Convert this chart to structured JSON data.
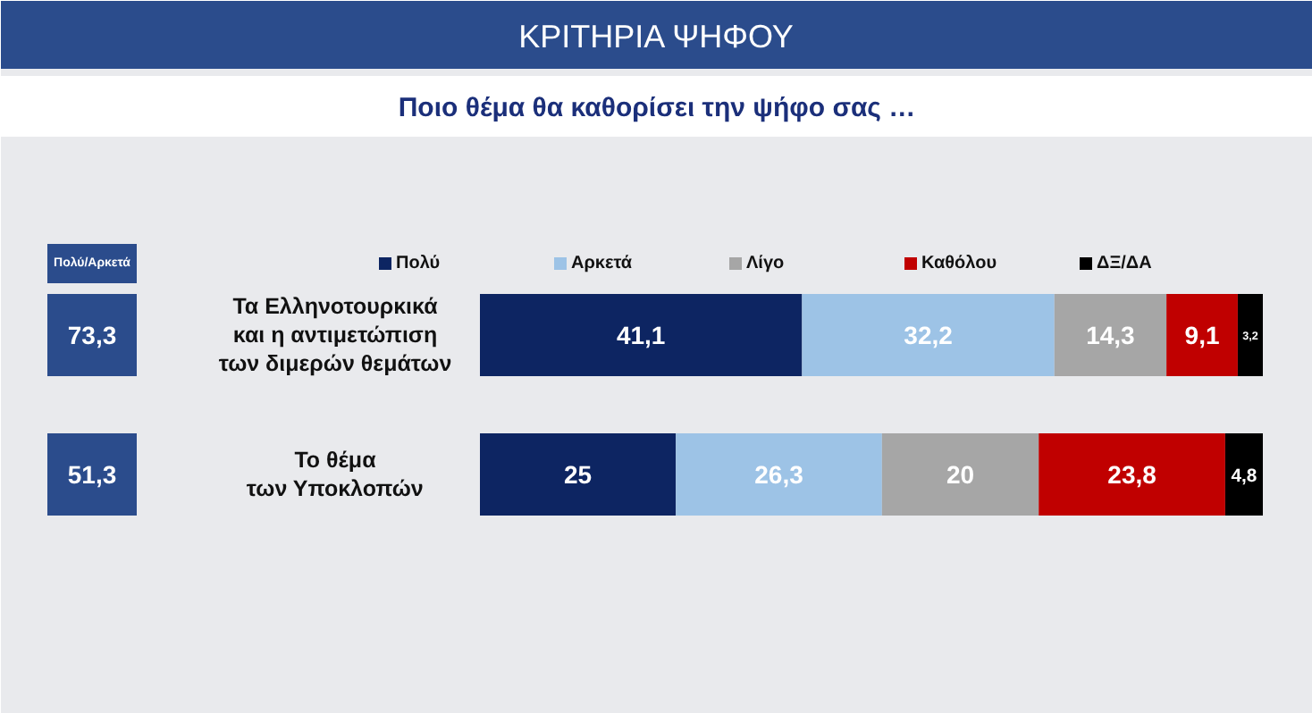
{
  "chart_data": {
    "type": "bar",
    "orientation": "horizontal",
    "stacked": true,
    "title": "ΚΡΙΤΗΡΙΑ ΨΗΦΟΥ",
    "subtitle": "Ποιο θέμα θα καθορίσει την ψήφο σας …",
    "categories": [
      "Τα Ελληνοτουρκικά\nκαι η αντιμετώπιση\nτων διμερών θεμάτων",
      "Το θέμα\nτων Υποκλοπών"
    ],
    "series": [
      {
        "name": "Πολύ",
        "color": "#0d2562",
        "values": [
          41.1,
          25
        ],
        "value_labels": [
          "41,1",
          "25"
        ]
      },
      {
        "name": "Αρκετά",
        "color": "#9dc3e6",
        "values": [
          32.2,
          26.3
        ],
        "value_labels": [
          "32,2",
          "26,3"
        ]
      },
      {
        "name": "Λίγο",
        "color": "#a6a6a6",
        "values": [
          14.3,
          20
        ],
        "value_labels": [
          "14,3",
          "20"
        ]
      },
      {
        "name": "Καθόλου",
        "color": "#c00000",
        "values": [
          9.1,
          23.8
        ],
        "value_labels": [
          "9,1",
          "23,8"
        ]
      },
      {
        "name": "ΔΞ/ΔΑ",
        "color": "#000000",
        "values": [
          3.2,
          4.8
        ],
        "value_labels": [
          "3,2",
          "4,8"
        ]
      }
    ],
    "annotations": [
      "Πολύ/Αρκετά",
      "73,3",
      "51,3"
    ],
    "legend": "top",
    "grid": false
  }
}
